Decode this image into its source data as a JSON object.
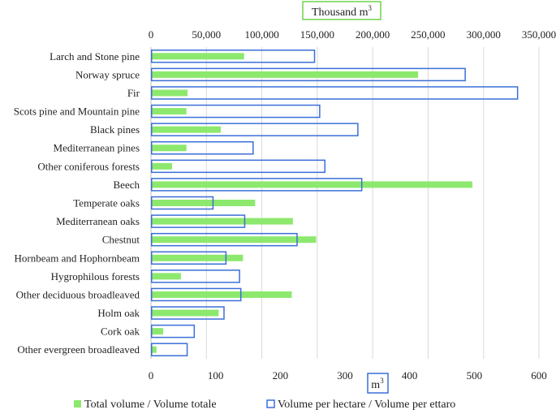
{
  "chart_data": {
    "type": "bar",
    "orientation": "horizontal",
    "categories": [
      "Larch and Stone pine",
      "Norway spruce",
      "Fir",
      "Scots pine and Mountain pine",
      "Black pines",
      "Mediterranean pines",
      "Other coniferous forests",
      "Beech",
      "Temperate oaks",
      "Mediterranean oaks",
      "Chestnut",
      "Hornbeam and Hophornbeam",
      "Hygrophilous forests",
      "Other deciduous broadleaved",
      "Holm oak",
      "Cork oak",
      "Other evergreen broadleaved"
    ],
    "series": [
      {
        "name": "Total volume / Volume totale",
        "axis": "top",
        "unit": "Thousand m3",
        "color": "#8de86e",
        "values": [
          84000,
          241000,
          33000,
          32000,
          63000,
          32000,
          19000,
          290000,
          94000,
          128000,
          149000,
          83000,
          27000,
          127000,
          61000,
          11000,
          5000
        ]
      },
      {
        "name": "Volume per hectare / Volume per ettaro",
        "axis": "bottom",
        "unit": "m3",
        "color": "#3a6fd8",
        "values": [
          252,
          485,
          566,
          260,
          319,
          157,
          268,
          325,
          95,
          144,
          225,
          115,
          136,
          138,
          112,
          66,
          55
        ]
      }
    ],
    "top_axis": {
      "title_main": "Thousand m",
      "title_sup": "3",
      "range": [
        0,
        350000
      ],
      "ticks": [
        "0",
        "50,000",
        "100,000",
        "150,000",
        "200,000",
        "250,000",
        "300,000",
        "350,000"
      ]
    },
    "bottom_axis": {
      "title_main": "m",
      "title_sup": "3",
      "range": [
        0,
        600
      ],
      "ticks": [
        "0",
        "100",
        "200",
        "300",
        "400",
        "500",
        "600"
      ]
    },
    "grid": true,
    "legend_position": "bottom"
  }
}
